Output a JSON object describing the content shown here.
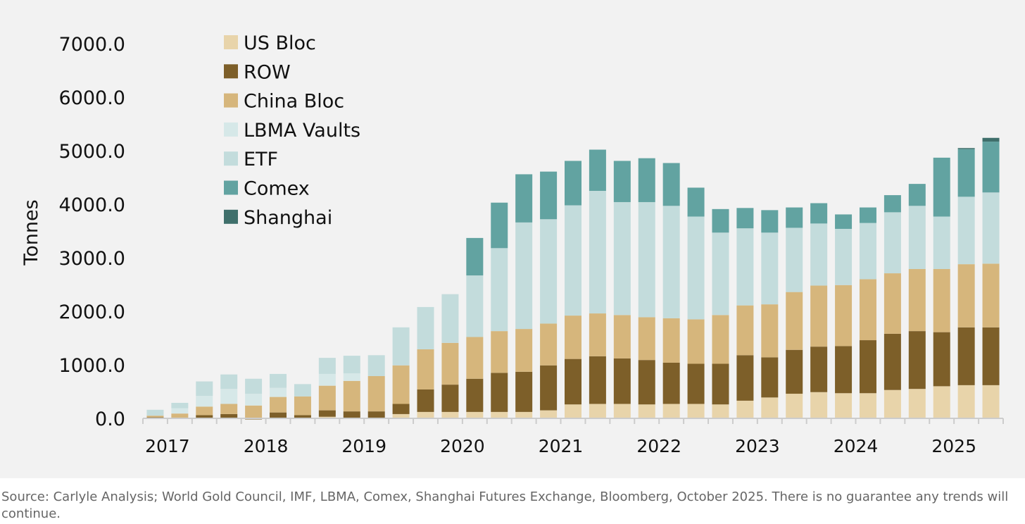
{
  "source_note": "Source: Carlyle Analysis; World Gold Council, IMF, LBMA, Comex, Shanghai Futures Exchange, Bloomberg, October 2025. There is no guarantee any trends will continue.",
  "chart_data": {
    "type": "bar",
    "stacked": true,
    "ylabel": "Tonnes",
    "ylim": [
      0,
      7000
    ],
    "yticks": [
      "0.0",
      "1000.0",
      "2000.0",
      "3000.0",
      "4000.0",
      "5000.0",
      "6000.0",
      "7000.0"
    ],
    "legend_position": "top-left",
    "x_year_labels": [
      "2017",
      "2018",
      "2019",
      "2020",
      "2021",
      "2022",
      "2023",
      "2024",
      "2025"
    ],
    "categories": [
      "2017Q1",
      "2017Q2",
      "2017Q3",
      "2017Q4",
      "2018Q1",
      "2018Q2",
      "2018Q3",
      "2018Q4",
      "2019Q1",
      "2019Q2",
      "2019Q3",
      "2019Q4",
      "2020Q1",
      "2020Q2",
      "2020Q3",
      "2020Q4",
      "2021Q1",
      "2021Q2",
      "2021Q3",
      "2021Q4",
      "2022Q1",
      "2022Q2",
      "2022Q3",
      "2022Q4",
      "2023Q1",
      "2023Q2",
      "2023Q3",
      "2023Q4",
      "2024Q1",
      "2024Q2",
      "2024Q3",
      "2024Q4",
      "2025Q1",
      "2025Q2",
      "2025Q3"
    ],
    "series": [
      {
        "name": "US Bloc",
        "color": "#e8d4aa",
        "values": [
          10,
          0,
          10,
          10,
          0,
          -10,
          0,
          30,
          0,
          -10,
          80,
          120,
          120,
          120,
          120,
          120,
          150,
          260,
          270,
          270,
          260,
          270,
          270,
          260,
          330,
          390,
          460,
          490,
          470,
          470,
          530,
          550,
          600,
          620,
          620
        ]
      },
      {
        "name": "ROW",
        "color": "#7d5f29",
        "values": [
          10,
          0,
          50,
          70,
          -20,
          110,
          60,
          120,
          130,
          130,
          190,
          420,
          510,
          620,
          730,
          750,
          840,
          850,
          890,
          850,
          830,
          770,
          750,
          760,
          850,
          750,
          820,
          850,
          880,
          990,
          1050,
          1080,
          1010,
          1080,
          1080
        ]
      },
      {
        "name": "China Bloc",
        "color": "#d6b67c",
        "values": [
          30,
          90,
          160,
          190,
          240,
          290,
          350,
          460,
          570,
          660,
          720,
          750,
          780,
          780,
          780,
          800,
          780,
          810,
          800,
          810,
          800,
          830,
          830,
          910,
          930,
          990,
          1080,
          1140,
          1140,
          1140,
          1130,
          1160,
          1180,
          1180,
          1190
        ]
      },
      {
        "name": "LBMA Vaults",
        "color": "#d6e8e8",
        "values": [
          0,
          100,
          200,
          280,
          220,
          170,
          0,
          220,
          140,
          0,
          0,
          0,
          0,
          0,
          0,
          0,
          0,
          0,
          0,
          0,
          0,
          0,
          0,
          0,
          0,
          0,
          0,
          0,
          0,
          0,
          0,
          0,
          0,
          0,
          0
        ]
      },
      {
        "name": "ETF",
        "color": "#c3dcdc",
        "values": [
          110,
          100,
          270,
          270,
          280,
          260,
          230,
          300,
          330,
          390,
          710,
          790,
          910,
          1150,
          1550,
          1990,
          1950,
          2060,
          2290,
          2110,
          2150,
          2100,
          1920,
          1540,
          1440,
          1340,
          1200,
          1160,
          1050,
          1050,
          1140,
          1180,
          980,
          1260,
          1330
        ]
      },
      {
        "name": "Comex",
        "color": "#62a3a1",
        "values": [
          0,
          0,
          0,
          0,
          0,
          0,
          0,
          0,
          0,
          0,
          0,
          0,
          0,
          700,
          850,
          900,
          890,
          830,
          770,
          770,
          820,
          800,
          540,
          440,
          380,
          420,
          380,
          380,
          270,
          290,
          320,
          410,
          1100,
          890,
          950
        ]
      },
      {
        "name": "Shanghai",
        "color": "#3f6f6b",
        "values": [
          0,
          0,
          0,
          0,
          0,
          0,
          0,
          0,
          0,
          0,
          0,
          0,
          0,
          0,
          0,
          0,
          0,
          0,
          0,
          0,
          0,
          0,
          0,
          0,
          0,
          0,
          0,
          0,
          0,
          0,
          0,
          0,
          0,
          20,
          70
        ]
      }
    ]
  }
}
